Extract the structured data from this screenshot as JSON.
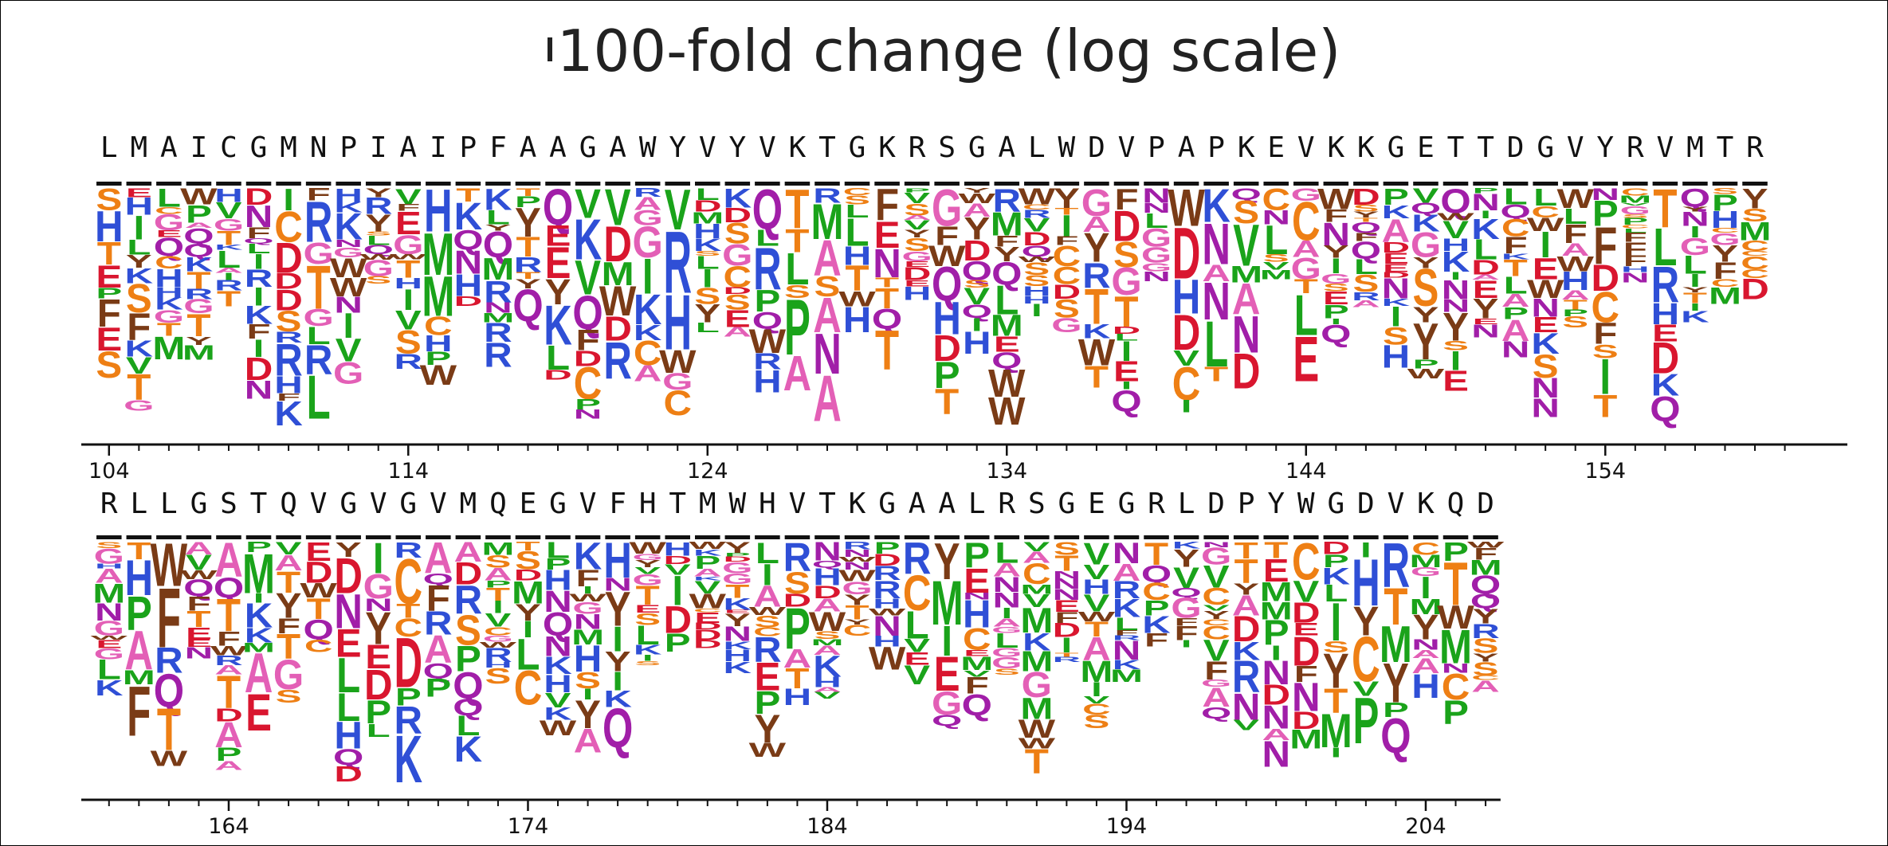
{
  "chart_data": {
    "type": "sequence-logo",
    "title": "100-fold change (log scale)",
    "rows": [
      {
        "start": 104,
        "wildtype": "LMAICGMNPIAIPFAAGAWYVYVKTGKRSGALWDVPAPKEVKKGETTDGVYRVMTR",
        "tick_labels": [
          "104",
          "114",
          "124",
          "134",
          "144",
          "154"
        ]
      },
      {
        "start": 160,
        "wildtype": "RLLGSTQVGVGVMQEGVFHTMWHVTKGAALRSGEGRLDPYWGDVKQD",
        "tick_labels": [
          "164",
          "174",
          "184",
          "194",
          "204"
        ]
      }
    ],
    "colors": {
      "hydrophobic": "#1aa31a",
      "polar": "#7b3fc4",
      "basic": "#2f4fd6",
      "acidic": "#d9162f",
      "aromatic": "#7a3b16",
      "amide": "#a11ea8",
      "small": "#ee7f14",
      "pink": "#e35fb6",
      "teal": "#1a9a8a"
    }
  }
}
